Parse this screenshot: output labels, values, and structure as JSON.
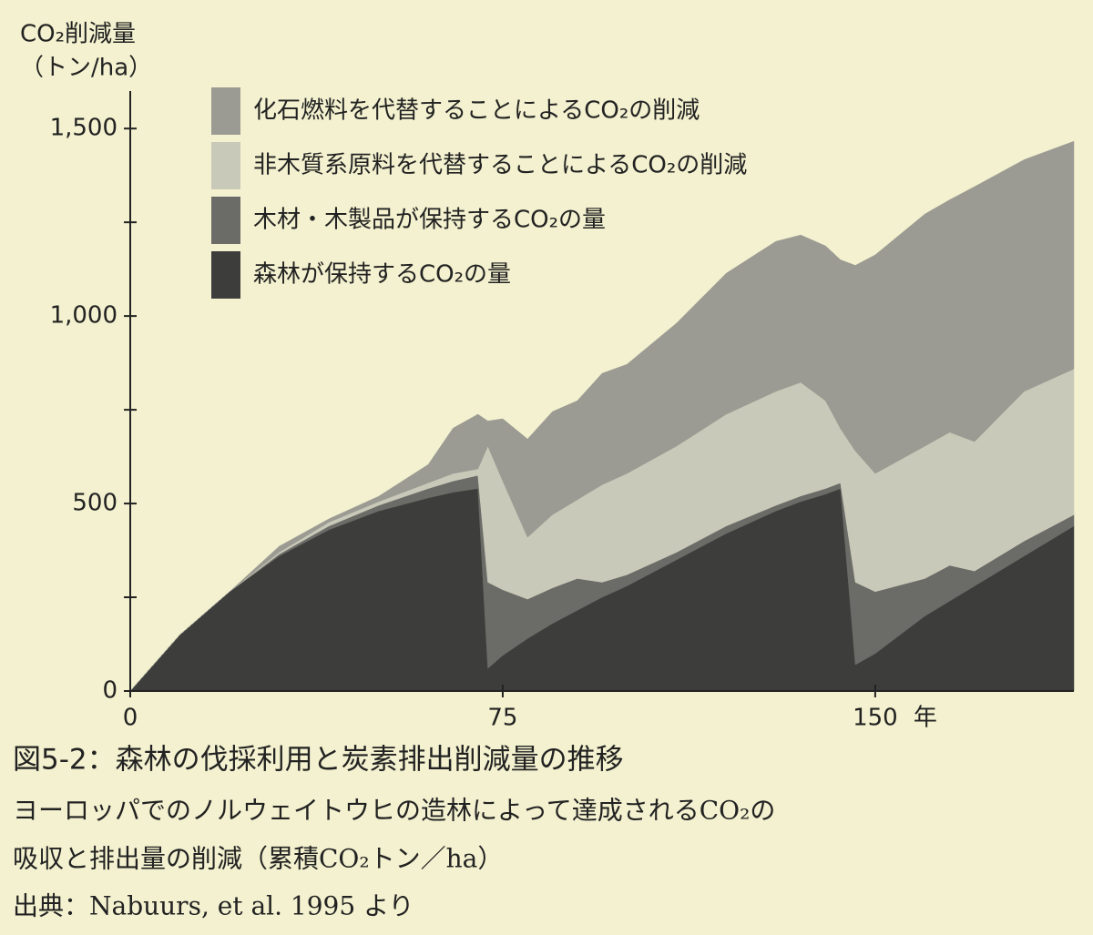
{
  "chart_data": {
    "type": "stacked-area",
    "ylabel": [
      "CO₂削減量",
      "（トン/ha）"
    ],
    "xlabel": "年",
    "x": [
      0,
      10,
      20,
      30,
      40,
      50,
      60,
      65,
      70,
      72,
      75,
      80,
      85,
      90,
      95,
      100,
      110,
      120,
      130,
      135,
      140,
      143,
      146,
      150,
      160,
      165,
      170,
      180,
      190
    ],
    "series": [
      {
        "name": "森林が保持するCO₂の量",
        "color": "#3d3d3b",
        "values": [
          0,
          150,
          265,
          360,
          430,
          480,
          515,
          530,
          540,
          60,
          95,
          140,
          180,
          215,
          250,
          280,
          350,
          420,
          480,
          505,
          525,
          540,
          70,
          100,
          200,
          240,
          280,
          360,
          440
        ]
      },
      {
        "name": "木材・木製品が保持するCO₂の量",
        "color": "#6b6b67",
        "values": [
          0,
          0,
          0,
          5,
          10,
          15,
          25,
          30,
          35,
          230,
          175,
          105,
          95,
          85,
          40,
          30,
          20,
          20,
          15,
          15,
          15,
          15,
          220,
          165,
          100,
          95,
          40,
          40,
          30
        ]
      },
      {
        "name": "非木質系原料を代替することによるCO₂の削減",
        "color": "#c9c9b9",
        "values": [
          0,
          0,
          0,
          5,
          10,
          10,
          15,
          20,
          17,
          363,
          290,
          165,
          195,
          210,
          260,
          270,
          283,
          298,
          304,
          303,
          234,
          145,
          350,
          315,
          353,
          355,
          345,
          399,
          389
        ]
      },
      {
        "name": "化石燃料を代替することによるCO₂の削減",
        "color": "#9b9b93",
        "values": [
          0,
          0,
          0,
          16,
          9,
          14,
          49,
          121,
          146,
          67,
          166,
          262,
          275,
          264,
          297,
          291,
          328,
          376,
          400,
          393,
          413,
          450,
          495,
          583,
          619,
          620,
          680,
          618,
          607
        ]
      }
    ],
    "xlim": [
      0,
      190
    ],
    "xticks": [
      0,
      75,
      150
    ],
    "ylim": [
      0,
      1600
    ],
    "yticks": [
      0,
      500,
      {
        "value": 1000,
        "label": "1,000"
      },
      {
        "value": 1500,
        "label": "1,500"
      }
    ],
    "yminorticks": [
      250,
      750,
      1250
    ]
  },
  "caption": [
    "図5-2：森林の伐採利用と炭素排出削減量の推移",
    "ヨーロッパでのノルウェイトウヒの造林によって達成されるCO₂の",
    "吸収と排出量の削減（累積CO₂トン／ha）",
    "出典：Nabuurs, et al. 1995 より"
  ]
}
